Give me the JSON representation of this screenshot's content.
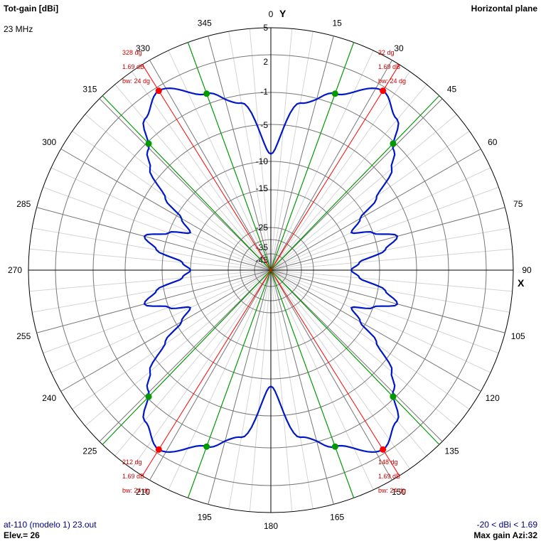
{
  "header": {
    "title": "Tot-gain [dBi]",
    "frequency": "23 MHz",
    "plane": "Horizontal plane"
  },
  "footer": {
    "file": "at-110 (modelo 1) 23.out",
    "elevation": "Elev.= 26",
    "range": "-20 < dBi < 1.69",
    "max_gain": "Max gain Azi:32"
  },
  "axes": {
    "y_label": "Y",
    "x_label": "X"
  },
  "chart_data": {
    "type": "polar",
    "unit": "dBi",
    "angle_labels": [
      "0",
      "15",
      "30",
      "45",
      "60",
      "75",
      "90",
      "105",
      "120",
      "135",
      "150",
      "165",
      "180",
      "195",
      "210",
      "225",
      "240",
      "255",
      "270",
      "285",
      "300",
      "315",
      "330",
      "345"
    ],
    "radial_labels": [
      "5",
      "2",
      "-1",
      "-5",
      "-10",
      "-15",
      "-25",
      "-35",
      "-45"
    ],
    "max_gain_dbi": 1.69,
    "min_dbi": -20,
    "beamwidth_deg": 24,
    "pattern_series": {
      "name": "",
      "color": "#0018c8",
      "azimuth_deg": [
        0,
        10,
        20,
        32,
        40,
        46,
        50,
        56,
        60,
        65,
        70,
        75,
        80,
        85,
        90
      ],
      "gain_dbi": [
        -9.0,
        -2.0,
        -0.2,
        1.69,
        0.5,
        -1.8,
        -3.5,
        -7.5,
        -11,
        -13.5,
        -10,
        -7,
        -9,
        -13.5,
        -15
      ]
    },
    "lobe_markers": [
      {
        "azimuth": "328 dg",
        "gain": "1.69 dB",
        "bw": "bw: 24 dg"
      },
      {
        "azimuth": "32 dg",
        "gain": "1.69 dB",
        "bw": "bw: 24 dg"
      },
      {
        "azimuth": "212 dg",
        "gain": "1.69 dB",
        "bw": "bw: 24 dg"
      },
      {
        "azimuth": "148 dg",
        "gain": "1.69 dB",
        "bw": "bw: 24 dg"
      }
    ],
    "colors": {
      "pattern": "#0018c8",
      "max_gain_line": "#ff0000",
      "beamwidth_line": "#009900",
      "annotation_text": "#cc0000"
    }
  }
}
